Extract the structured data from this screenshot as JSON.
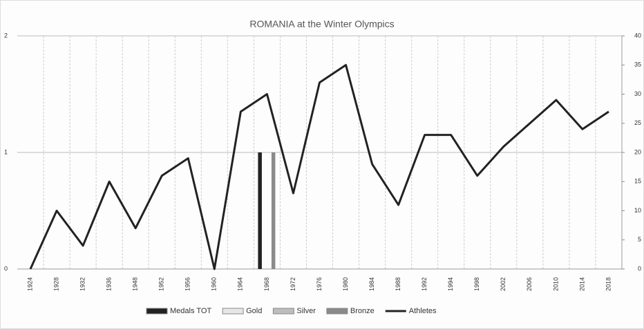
{
  "chart_data": {
    "type": "bar-line",
    "title": "ROMANIA at the Winter Olympics",
    "categories": [
      "1924",
      "1928",
      "1932",
      "1936",
      "1948",
      "1952",
      "1956",
      "1960",
      "1964",
      "1968",
      "1972",
      "1976",
      "1980",
      "1984",
      "1988",
      "1992",
      "1994",
      "1998",
      "2002",
      "2006",
      "2010",
      "2014",
      "2018"
    ],
    "series": [
      {
        "name": "Medals TOT",
        "color": "#222222",
        "type": "bar",
        "values": [
          0,
          0,
          0,
          0,
          0,
          0,
          0,
          0,
          0,
          1,
          0,
          0,
          0,
          0,
          0,
          0,
          0,
          0,
          0,
          0,
          0,
          0,
          0
        ]
      },
      {
        "name": "Gold",
        "color": "#e6e6e6",
        "type": "bar",
        "values": [
          0,
          0,
          0,
          0,
          0,
          0,
          0,
          0,
          0,
          0,
          0,
          0,
          0,
          0,
          0,
          0,
          0,
          0,
          0,
          0,
          0,
          0,
          0
        ]
      },
      {
        "name": "Silver",
        "color": "#bdbdbd",
        "type": "bar",
        "values": [
          0,
          0,
          0,
          0,
          0,
          0,
          0,
          0,
          0,
          0,
          0,
          0,
          0,
          0,
          0,
          0,
          0,
          0,
          0,
          0,
          0,
          0,
          0
        ]
      },
      {
        "name": "Bronze",
        "color": "#8a8a8a",
        "type": "bar",
        "values": [
          0,
          0,
          0,
          0,
          0,
          0,
          0,
          0,
          0,
          1,
          0,
          0,
          0,
          0,
          0,
          0,
          0,
          0,
          0,
          0,
          0,
          0,
          0
        ]
      },
      {
        "name": "Athletes",
        "color": "#222222",
        "type": "line",
        "axis": "y2",
        "values": [
          0,
          10,
          4,
          15,
          7,
          16,
          19,
          0,
          27,
          30,
          13,
          32,
          35,
          18,
          11,
          23,
          23,
          16,
          21,
          25,
          29,
          24,
          27
        ]
      }
    ],
    "ylim": [
      0,
      2
    ],
    "yticks": [
      0,
      1,
      2
    ],
    "y2lim": [
      0,
      40
    ],
    "y2ticks": [
      0,
      5,
      10,
      15,
      20,
      25,
      30,
      35,
      40
    ],
    "grid": true,
    "legend": "bottom"
  }
}
